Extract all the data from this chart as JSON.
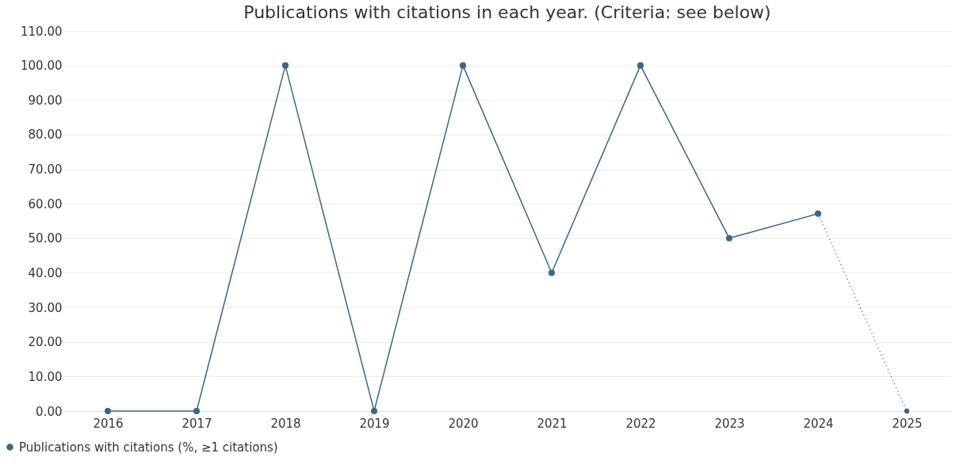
{
  "chart_data": {
    "type": "line",
    "title": "Publications with citations in each year. (Criteria: see below)",
    "categories": [
      "2016",
      "2017",
      "2018",
      "2019",
      "2020",
      "2021",
      "2022",
      "2023",
      "2024",
      "2025"
    ],
    "series": [
      {
        "name": "Publications with citations (%, ≥1 citations)",
        "color": "#3d6680",
        "line_style": "solid",
        "values": [
          0,
          0,
          100,
          0,
          100,
          40,
          100,
          50,
          57.1,
          null
        ]
      },
      {
        "color": "#3d6680",
        "line_style": "dotted",
        "values": [
          null,
          null,
          null,
          null,
          null,
          null,
          null,
          null,
          57.1,
          0
        ]
      }
    ],
    "ylim": [
      0,
      110
    ],
    "yticks": [
      {
        "value": 0,
        "label": "0.00"
      },
      {
        "value": 10,
        "label": "10.00"
      },
      {
        "value": 20,
        "label": "20.00"
      },
      {
        "value": 30,
        "label": "30.00"
      },
      {
        "value": 40,
        "label": "40.00"
      },
      {
        "value": 50,
        "label": "50.00"
      },
      {
        "value": 60,
        "label": "60.00"
      },
      {
        "value": 70,
        "label": "70.00"
      },
      {
        "value": 80,
        "label": "80.00"
      },
      {
        "value": 90,
        "label": "90.00"
      },
      {
        "value": 100,
        "label": "100.00"
      },
      {
        "value": 110,
        "label": "110.00"
      }
    ],
    "grid": "y",
    "legend": "bottom left",
    "marker": "circle"
  }
}
